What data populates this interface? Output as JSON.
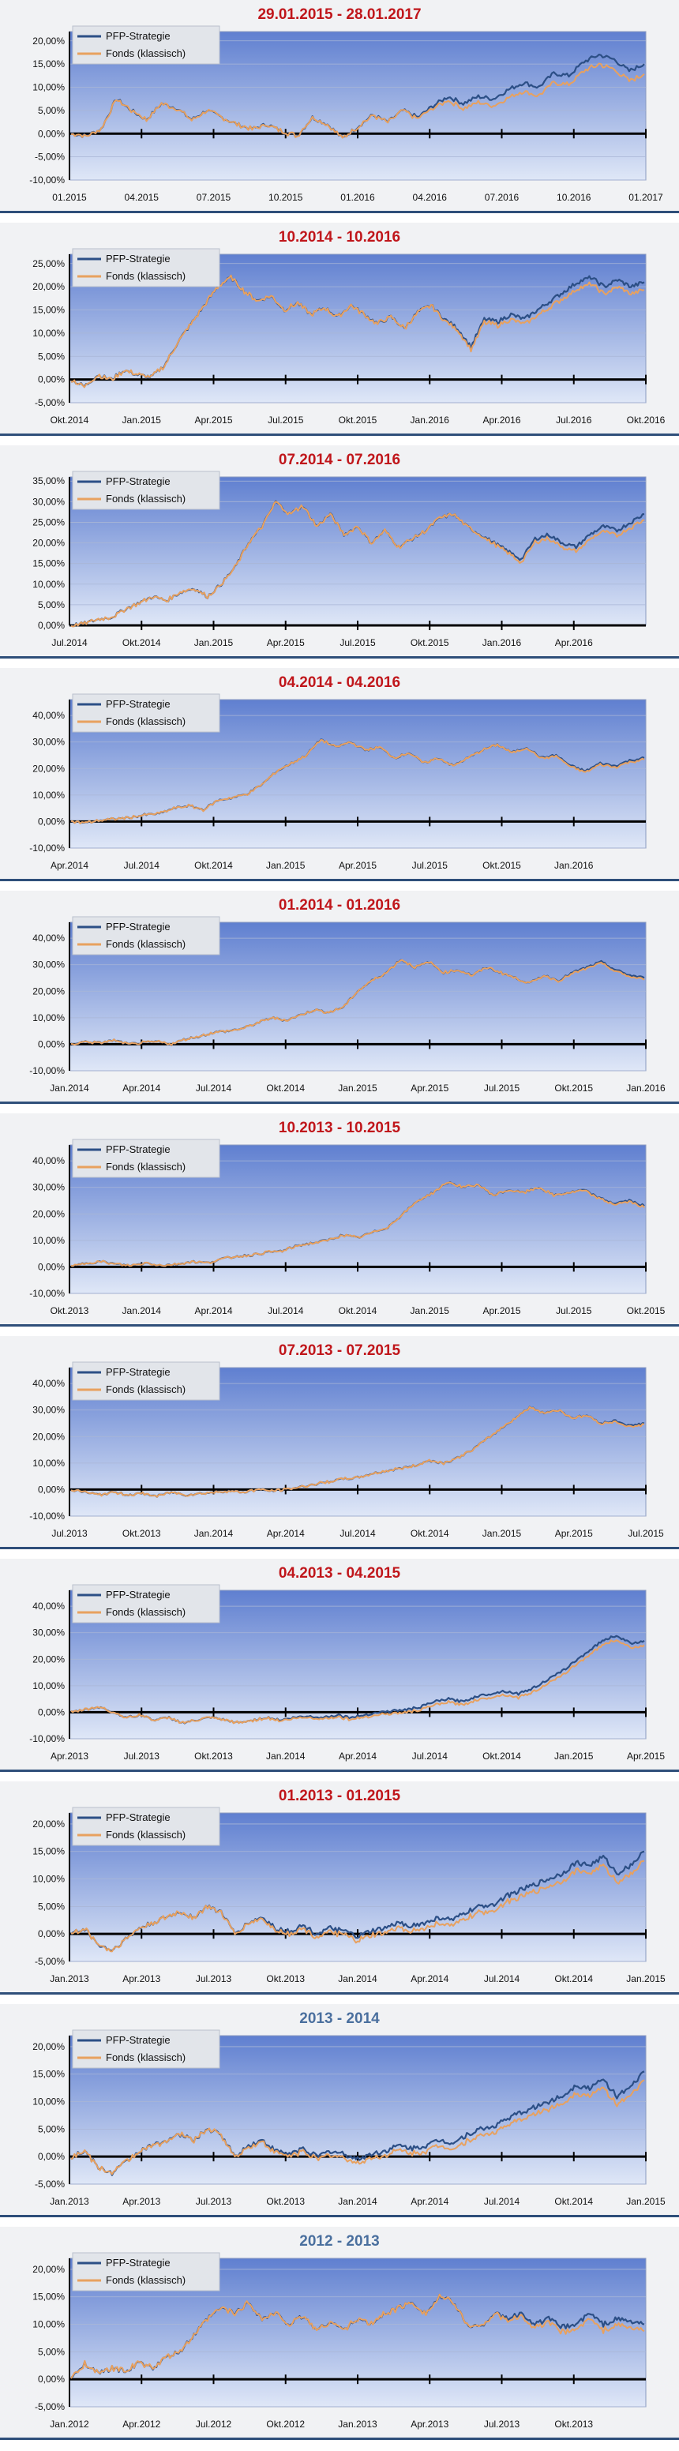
{
  "colors": {
    "title_red": "#c0161b",
    "title_blue": "#4a6f9e",
    "strategy_line": "#2c4f86",
    "fund_line": "#e8a15f",
    "plot_top": "#5f7fd0",
    "plot_bottom": "#dfe7f7"
  },
  "legend": {
    "strategy": "PFP-Strategie",
    "fund": "Fonds (klassisch)"
  },
  "chart_data": [
    {
      "type": "line",
      "title": "29.01.2015 - 28.01.2017",
      "title_color": "red",
      "x_labels": [
        "01.2015",
        "04.2015",
        "07.2015",
        "10.2015",
        "01.2016",
        "04.2016",
        "07.2016",
        "10.2016",
        "01.2017"
      ],
      "y_ticks": [
        20,
        15,
        10,
        5,
        0,
        -5,
        -10
      ],
      "y_tick_labels": [
        "20,00%",
        "15,00%",
        "10,00%",
        "5,00%",
        "0,00%",
        "-5,00%",
        "-10,00%"
      ],
      "ylim": [
        -10,
        22
      ],
      "split": 0.57,
      "points": [
        0,
        -0.5,
        1,
        7.5,
        5,
        3,
        6.5,
        5.5,
        3,
        5,
        3.5,
        2,
        1,
        2,
        0.5,
        -0.5,
        3.5,
        2,
        -1,
        1.5,
        4,
        2.5,
        5,
        3.5,
        6,
        8,
        6.5,
        8,
        7.5,
        9.5,
        11,
        10,
        13,
        12.5,
        15.5,
        17,
        16,
        13.5,
        15
      ],
      "fund_offset": [
        0,
        0.5,
        1.2,
        1.6,
        1.9,
        2.0,
        2.1,
        2.2
      ]
    },
    {
      "type": "line",
      "title": "10.2014 - 10.2016",
      "title_color": "red",
      "x_labels": [
        "Okt.2014",
        "Jan.2015",
        "Apr.2015",
        "Jul.2015",
        "Okt.2015",
        "Jan.2016",
        "Apr.2016",
        "Jul.2016",
        "Okt.2016"
      ],
      "y_ticks": [
        25,
        20,
        15,
        10,
        5,
        0,
        -5
      ],
      "y_tick_labels": [
        "25,00%",
        "20,00%",
        "15,00%",
        "10,00%",
        "5,00%",
        "0,00%",
        "-5,00%"
      ],
      "ylim": [
        -5,
        27
      ],
      "split": 0.62,
      "points": [
        0,
        -1.5,
        1,
        0,
        2,
        1,
        0.5,
        3,
        8,
        12,
        16,
        20,
        22,
        19,
        17,
        18,
        15,
        16.5,
        14,
        15.5,
        13.5,
        16,
        14,
        12,
        13.5,
        11,
        14.5,
        16,
        13,
        11,
        7,
        13,
        12.5,
        14,
        13,
        15,
        17,
        19,
        21,
        22,
        20,
        21.5,
        20,
        21
      ],
      "fund_offset": [
        0,
        0.5,
        1.0,
        1.3,
        1.5,
        1.6
      ]
    },
    {
      "type": "line",
      "title": "07.2014 - 07.2016",
      "title_color": "red",
      "x_labels": [
        "Jul.2014",
        "Okt.2014",
        "Jan.2015",
        "Apr.2015",
        "Jul.2015",
        "Okt.2015",
        "Jan.2016",
        "Apr.2016"
      ],
      "y_ticks": [
        35,
        30,
        25,
        20,
        15,
        10,
        5,
        0
      ],
      "y_tick_labels": [
        "35,00%",
        "30,00%",
        "25,00%",
        "20,00%",
        "15,00%",
        "10,00%",
        "5,00%",
        "0,00%"
      ],
      "ylim": [
        0,
        36
      ],
      "split": 0.7,
      "points": [
        0,
        0.5,
        1.5,
        2,
        4,
        5.5,
        7,
        6,
        8,
        9,
        7,
        10,
        14,
        20,
        24,
        30,
        27,
        29,
        24,
        27,
        22,
        24,
        20,
        23,
        19,
        21,
        23,
        26,
        27,
        24,
        22,
        20,
        18,
        16,
        21,
        22,
        20,
        19,
        22,
        24,
        23,
        25,
        27
      ],
      "fund_offset": [
        0,
        0.6,
        1.0,
        1.2,
        1.3
      ]
    },
    {
      "type": "line",
      "title": "04.2014 - 04.2016",
      "title_color": "red",
      "x_labels": [
        "Apr.2014",
        "Jul.2014",
        "Okt.2014",
        "Jan.2015",
        "Apr.2015",
        "Jul.2015",
        "Okt.2015",
        "Jan.2016"
      ],
      "y_ticks": [
        40,
        30,
        20,
        10,
        0,
        -10
      ],
      "y_tick_labels": [
        "40,00%",
        "30,00%",
        "20,00%",
        "10,00%",
        "0,00%",
        "-10,00%"
      ],
      "ylim": [
        -10,
        46
      ],
      "split": 0.75,
      "points": [
        0,
        -0.5,
        0.5,
        1,
        1.5,
        2.5,
        3,
        5,
        6,
        4.5,
        8,
        9,
        10.5,
        14,
        19,
        22,
        25,
        31,
        28,
        30,
        27,
        28,
        24,
        26,
        22,
        24,
        21,
        24,
        27,
        29,
        26,
        28,
        24,
        25,
        21,
        19,
        22,
        21,
        23,
        24
      ],
      "fund_offset": [
        0,
        0.3,
        0.5,
        0.6
      ]
    },
    {
      "type": "line",
      "title": "01.2014 - 01.2016",
      "title_color": "red",
      "x_labels": [
        "Jan.2014",
        "Apr.2014",
        "Jul.2014",
        "Okt.2014",
        "Jan.2015",
        "Apr.2015",
        "Jul.2015",
        "Okt.2015",
        "Jan.2016"
      ],
      "y_ticks": [
        40,
        30,
        20,
        10,
        0,
        -10
      ],
      "y_tick_labels": [
        "40,00%",
        "30,00%",
        "20,00%",
        "10,00%",
        "0,00%",
        "-10,00%"
      ],
      "ylim": [
        -10,
        46
      ],
      "split": 0.8,
      "points": [
        0,
        1,
        0.5,
        1.5,
        0,
        0.5,
        1,
        0,
        2,
        3,
        4.5,
        5,
        6,
        8,
        10,
        9,
        11,
        13,
        12,
        14,
        20,
        24,
        27,
        32,
        29,
        31,
        27,
        28,
        26,
        29,
        27,
        25,
        23,
        26,
        24,
        27,
        29,
        31,
        28,
        26,
        25
      ],
      "fund_offset": [
        0,
        0.3,
        0.5,
        0.6
      ]
    },
    {
      "type": "line",
      "title": "10.2013 - 10.2015",
      "title_color": "red",
      "x_labels": [
        "Okt.2013",
        "Jan.2014",
        "Apr.2014",
        "Jul.2014",
        "Okt.2014",
        "Jan.2015",
        "Apr.2015",
        "Jul.2015",
        "Okt.2015"
      ],
      "y_ticks": [
        40,
        30,
        20,
        10,
        0,
        -10
      ],
      "y_tick_labels": [
        "40,00%",
        "30,00%",
        "20,00%",
        "10,00%",
        "0,00%",
        "-10,00%"
      ],
      "ylim": [
        -10,
        46
      ],
      "split": 0.85,
      "points": [
        0,
        1.5,
        2,
        1,
        0.5,
        1.5,
        0.5,
        1,
        2,
        1.5,
        3,
        4,
        4.5,
        5.5,
        6,
        8,
        9,
        10,
        12,
        11,
        13,
        15,
        20,
        25,
        28,
        32,
        30,
        31,
        27,
        29,
        28,
        30,
        27,
        28,
        29,
        26,
        24,
        25,
        23
      ],
      "fund_offset": [
        0,
        0.2,
        0.4,
        0.5
      ]
    },
    {
      "type": "line",
      "title": "07.2013 - 07.2015",
      "title_color": "red",
      "x_labels": [
        "Jul.2013",
        "Okt.2013",
        "Jan.2014",
        "Apr.2014",
        "Jul.2014",
        "Okt.2014",
        "Jan.2015",
        "Apr.2015",
        "Jul.2015"
      ],
      "y_ticks": [
        40,
        30,
        20,
        10,
        0,
        -10
      ],
      "y_tick_labels": [
        "40,00%",
        "30,00%",
        "20,00%",
        "10,00%",
        "0,00%",
        "-10,00%"
      ],
      "ylim": [
        -10,
        46
      ],
      "split": 0.88,
      "points": [
        0,
        -1,
        -2,
        -1,
        -2,
        -1.5,
        -2.5,
        -1,
        -2,
        -1.5,
        -1,
        -0.5,
        -1,
        0,
        -0.5,
        0,
        1,
        2,
        3,
        4,
        4.5,
        6,
        7,
        8,
        9,
        11,
        10,
        12,
        15,
        19,
        23,
        27,
        31,
        29,
        30,
        27,
        28,
        25,
        26,
        24,
        25
      ],
      "fund_offset": [
        0,
        0.2,
        0.4,
        0.5
      ]
    },
    {
      "type": "line",
      "title": "04.2013 - 04.2015",
      "title_color": "red",
      "x_labels": [
        "Apr.2013",
        "Jul.2013",
        "Okt.2013",
        "Jan.2014",
        "Apr.2014",
        "Jul.2014",
        "Okt.2014",
        "Jan.2015",
        "Apr.2015"
      ],
      "y_ticks": [
        40,
        30,
        20,
        10,
        0,
        -10
      ],
      "y_tick_labels": [
        "40,00%",
        "30,00%",
        "20,00%",
        "10,00%",
        "0,00%",
        "-10,00%"
      ],
      "ylim": [
        -10,
        46
      ],
      "split": 0.3,
      "points": [
        0,
        1,
        2,
        0,
        -2,
        -1,
        -3,
        -2,
        -4,
        -3,
        -2,
        -3,
        -4,
        -3,
        -2,
        -3,
        -2,
        -1.5,
        -2,
        -1,
        -2,
        -1,
        0,
        0.5,
        1,
        2,
        4,
        5,
        4,
        6,
        7,
        8,
        7,
        9,
        12,
        15,
        19,
        23,
        27,
        29,
        26,
        27
      ],
      "fund_offset": [
        0,
        0.7,
        1.2,
        1.5,
        1.7
      ]
    },
    {
      "type": "line",
      "title": "01.2013 - 01.2015",
      "title_color": "red",
      "x_labels": [
        "Jan.2013",
        "Apr.2013",
        "Jul.2013",
        "Okt.2013",
        "Jan.2014",
        "Apr.2014",
        "Jul.2014",
        "Okt.2014",
        "Jan.2015"
      ],
      "y_ticks": [
        20,
        15,
        10,
        5,
        0,
        -5
      ],
      "y_tick_labels": [
        "20,00%",
        "15,00%",
        "10,00%",
        "5,00%",
        "0,00%",
        "-5,00%"
      ],
      "ylim": [
        -5,
        22
      ],
      "split": 0.25,
      "points": [
        0,
        1,
        -2,
        -3,
        -1,
        1,
        2,
        3,
        4,
        3,
        5,
        4,
        0,
        2,
        3,
        1,
        0.5,
        1.5,
        0,
        1,
        0.5,
        -0.5,
        0.5,
        1,
        2,
        1.5,
        2,
        3,
        2.5,
        4,
        5,
        5.5,
        7,
        8,
        9,
        10,
        11,
        13,
        12.5,
        14,
        11,
        12.5,
        15
      ],
      "fund_offset": [
        0,
        0.6,
        1.0,
        1.3,
        1.6
      ]
    },
    {
      "type": "line",
      "title": "2013 - 2014",
      "title_color": "blue",
      "x_labels": [
        "Jan.2013",
        "Apr.2013",
        "Jul.2013",
        "Okt.2013",
        "Jan.2014",
        "Apr.2014",
        "Jul.2014",
        "Okt.2014",
        "Jan.2015"
      ],
      "y_ticks": [
        20,
        15,
        10,
        5,
        0,
        -5
      ],
      "y_tick_labels": [
        "20,00%",
        "15,00%",
        "10,00%",
        "5,00%",
        "0,00%",
        "-5,00%"
      ],
      "ylim": [
        -5,
        22
      ],
      "split": 0.25,
      "points": [
        0,
        1,
        -2,
        -3,
        -1,
        1,
        2,
        3,
        4,
        3,
        5,
        4,
        0,
        2,
        3,
        1,
        0.5,
        1.5,
        0,
        1,
        0.5,
        -0.5,
        0.5,
        1,
        2,
        1.5,
        2,
        3,
        2.5,
        4,
        5,
        5.5,
        7,
        8,
        9,
        10,
        11,
        13,
        12.5,
        14,
        11,
        12.5,
        15.5
      ],
      "fund_offset": [
        0,
        0.6,
        1.0,
        1.3,
        1.6
      ]
    },
    {
      "type": "line",
      "title": "2012 - 2013",
      "title_color": "blue",
      "x_labels": [
        "Jan.2012",
        "Apr.2012",
        "Jul.2012",
        "Okt.2012",
        "Jan.2013",
        "Apr.2013",
        "Jul.2013",
        "Okt.2013"
      ],
      "y_ticks": [
        20,
        15,
        10,
        5,
        0,
        -5
      ],
      "y_tick_labels": [
        "20,00%",
        "15,00%",
        "10,00%",
        "5,00%",
        "0,00%",
        "-5,00%"
      ],
      "ylim": [
        -5,
        22
      ],
      "split": 0.72,
      "points": [
        0,
        3,
        1,
        2,
        1.5,
        3,
        2,
        4,
        5,
        8,
        11,
        13,
        12,
        14,
        11,
        12,
        10,
        11.5,
        9,
        10.5,
        9,
        11,
        10,
        12,
        13,
        14,
        12,
        15,
        14,
        10,
        9.5,
        12,
        11,
        12,
        10,
        11,
        9.5,
        10,
        12,
        10,
        11,
        10.5,
        10
      ],
      "fund_offset": [
        0,
        0.5,
        0.9,
        1.1,
        1.2
      ]
    }
  ]
}
